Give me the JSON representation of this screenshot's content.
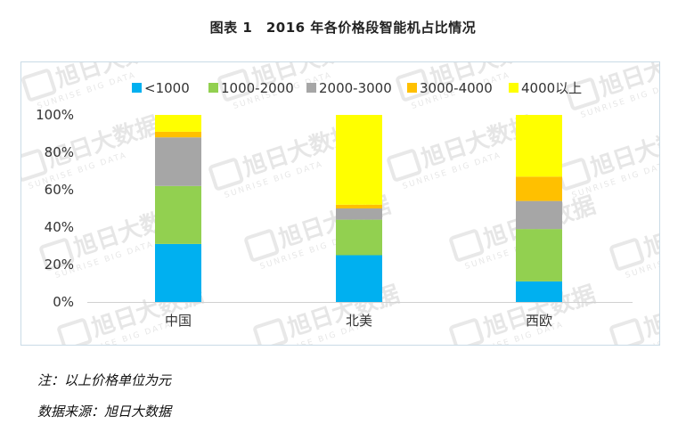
{
  "title": "图表 1　2016 年各价格段智能机占比情况",
  "chart_data": {
    "type": "bar",
    "stacked": true,
    "categories": [
      "中国",
      "北美",
      "西欧"
    ],
    "series": [
      {
        "name": "<1000",
        "color": "#00b0f0",
        "values": [
          31,
          25,
          11
        ]
      },
      {
        "name": "1000-2000",
        "color": "#92d050",
        "values": [
          31,
          19,
          28
        ]
      },
      {
        "name": "2000-3000",
        "color": "#a6a6a6",
        "values": [
          26,
          6,
          15
        ]
      },
      {
        "name": "3000-4000",
        "color": "#ffc000",
        "values": [
          3,
          2,
          13
        ]
      },
      {
        "name": "4000以上",
        "color": "#ffff00",
        "values": [
          9,
          48,
          33
        ]
      }
    ],
    "yticks": [
      "0%",
      "20%",
      "40%",
      "60%",
      "80%",
      "100%"
    ],
    "ylim": [
      0,
      100
    ],
    "legend_position": "top",
    "grid": false
  },
  "notes": {
    "line1": "注：以上价格单位为元",
    "line2": "数据来源：旭日大数据"
  },
  "watermark": {
    "brand": "旭日大数据",
    "sub": "SUNRISE BIG DATA"
  }
}
